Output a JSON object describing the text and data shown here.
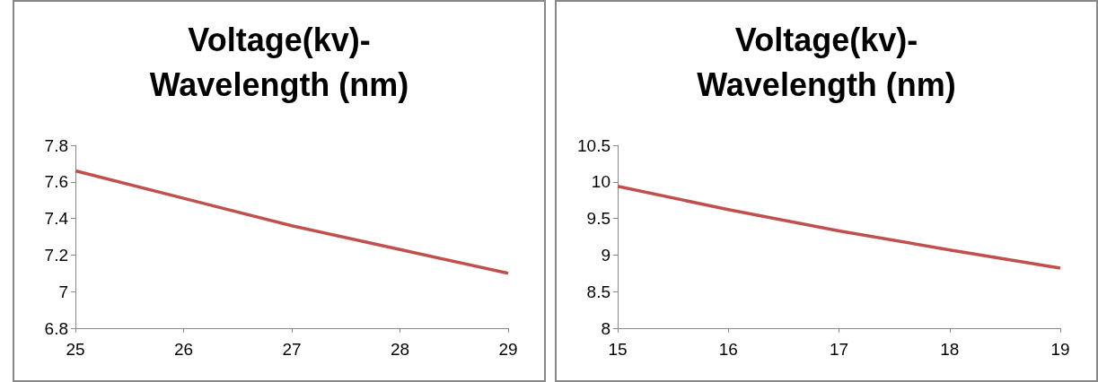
{
  "chart_data": [
    {
      "type": "line",
      "title": "Voltage(kv)-\nWavelength (nm)",
      "x": [
        25,
        26,
        27,
        28,
        29
      ],
      "values": [
        7.66,
        7.51,
        7.36,
        7.23,
        7.1
      ],
      "color": "#c0504d",
      "xlim": [
        25,
        29
      ],
      "xticks": [
        25,
        26,
        27,
        28,
        29
      ],
      "ylim": [
        6.8,
        7.8
      ],
      "yticks": [
        6.8,
        7,
        7.2,
        7.4,
        7.6,
        7.8
      ],
      "grid": false,
      "marker": "none"
    },
    {
      "type": "line",
      "title": "Voltage(kv)-\nWavelength (nm)",
      "x": [
        15,
        16,
        17,
        18,
        19
      ],
      "values": [
        9.94,
        9.62,
        9.33,
        9.07,
        8.82
      ],
      "color": "#c0504d",
      "xlim": [
        15,
        19
      ],
      "xticks": [
        15,
        16,
        17,
        18,
        19
      ],
      "ylim": [
        8,
        10.5
      ],
      "yticks": [
        8,
        8.5,
        9,
        9.5,
        10,
        10.5
      ],
      "grid": false,
      "marker": "none"
    }
  ]
}
